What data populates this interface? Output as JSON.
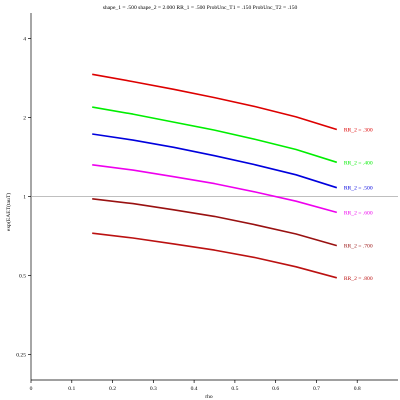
{
  "chart_data": {
    "type": "line",
    "title": "shape_1 = .500  shape_2 = 2.000  RR_1 = .500  ProbUnc_T1 = .150  ProbUnc_T2 = .150",
    "xlabel": "rho",
    "ylabel": "exp(EAET(tauT)",
    "xlim": [
      0,
      0.9
    ],
    "ylim": [
      0.2,
      5
    ],
    "y_scale": "log",
    "x_ticks": [
      0,
      0.1,
      0.2,
      0.3,
      0.4,
      0.5,
      0.6,
      0.7,
      0.8
    ],
    "x_tick_labels": [
      "0",
      "0.1",
      "0.2",
      "0.3",
      "0.4",
      "0.5",
      "0.6",
      "0.7",
      "0.8"
    ],
    "y_ticks": [
      0.25,
      0.5,
      1,
      2,
      4
    ],
    "y_tick_labels": [
      "0.25",
      "0.5",
      "1",
      "2",
      "4"
    ],
    "reference_line_y": 1,
    "grid": false,
    "x": [
      0.15,
      0.25,
      0.35,
      0.45,
      0.55,
      0.65,
      0.75
    ],
    "series": [
      {
        "name": "RR_2 = .300",
        "color": "#dd0000",
        "values": [
          2.92,
          2.74,
          2.56,
          2.38,
          2.2,
          2.01,
          1.8
        ]
      },
      {
        "name": "RR_2 = .400",
        "color": "#00ee00",
        "values": [
          2.19,
          2.06,
          1.92,
          1.79,
          1.65,
          1.51,
          1.35
        ]
      },
      {
        "name": "RR_2 = .500",
        "color": "#0000dd",
        "values": [
          1.73,
          1.64,
          1.54,
          1.43,
          1.32,
          1.21,
          1.08
        ]
      },
      {
        "name": "RR_2 = .600",
        "color": "#ee00ee",
        "values": [
          1.32,
          1.26,
          1.19,
          1.12,
          1.04,
          0.96,
          0.87
        ]
      },
      {
        "name": "RR_2 = .700",
        "color": "#991111",
        "values": [
          0.98,
          0.94,
          0.89,
          0.84,
          0.78,
          0.72,
          0.65
        ]
      },
      {
        "name": "RR_2 = .800",
        "color": "#bb1111",
        "values": [
          0.725,
          0.695,
          0.66,
          0.625,
          0.585,
          0.54,
          0.49
        ]
      }
    ]
  }
}
